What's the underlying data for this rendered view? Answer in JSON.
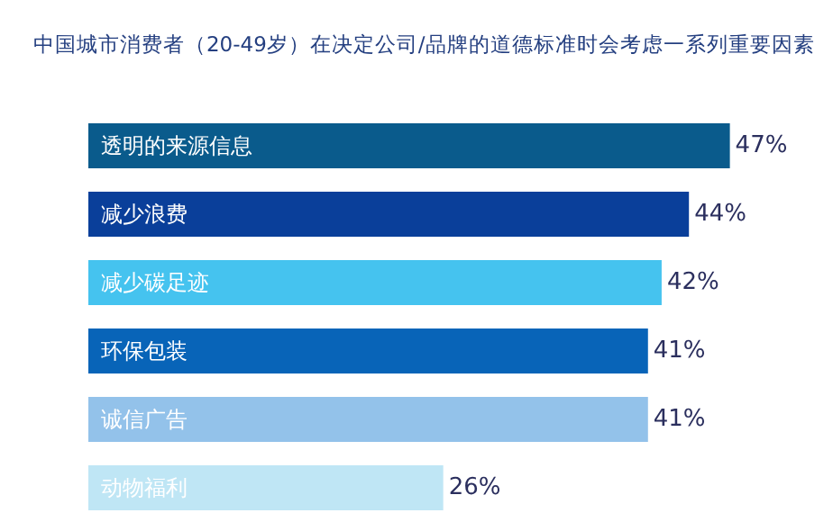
{
  "chart_data": {
    "type": "bar",
    "orientation": "horizontal",
    "title": "中国城市消费者（20-49岁）在决定公司/品牌的道德标准时会考虑一系列重要因素",
    "categories": [
      "透明的来源信息",
      "减少浪费",
      "减少碳足迹",
      "环保包装",
      "诚信广告",
      "动物福利"
    ],
    "values": [
      47,
      44,
      42,
      41,
      41,
      26
    ],
    "value_labels": [
      "47%",
      "44%",
      "42%",
      "41%",
      "41%",
      "26%"
    ],
    "colors": [
      "#0a5b8c",
      "#0a3f9a",
      "#45c3ef",
      "#0864b8",
      "#93c2ea",
      "#bfe6f5"
    ],
    "legend": false
  }
}
